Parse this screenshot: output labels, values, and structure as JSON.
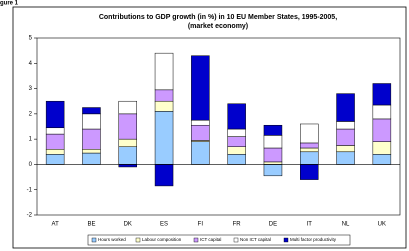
{
  "figure_label": "gure 1",
  "chart_data": {
    "type": "stacked_bar",
    "title": "Contributions to GDP growth (in %) in 10 EU Member States, 1995-2005,",
    "subtitle": "(market economy)",
    "categories": [
      "AT",
      "BE",
      "DK",
      "ES",
      "FI",
      "FR",
      "DE",
      "IT",
      "NL",
      "UK"
    ],
    "series": [
      {
        "name": "Hours worked",
        "color": "#99ccff",
        "values": [
          0.4,
          0.45,
          0.7,
          2.1,
          0.9,
          0.4,
          -0.45,
          0.5,
          0.5,
          0.4
        ]
      },
      {
        "name": "Labour composition",
        "color": "#ffffcc",
        "values": [
          0.2,
          0.15,
          0.3,
          0.4,
          0.05,
          0.3,
          0.1,
          0.15,
          0.25,
          0.5
        ]
      },
      {
        "name": "ICT capital",
        "color": "#cc99ff",
        "values": [
          0.6,
          0.8,
          1.0,
          0.45,
          0.6,
          0.4,
          0.55,
          0.2,
          0.65,
          0.9
        ]
      },
      {
        "name": "Non ICT capital",
        "color": "#ffffff",
        "values": [
          0.25,
          0.6,
          0.5,
          1.45,
          0.2,
          0.3,
          0.5,
          0.75,
          0.3,
          0.55
        ]
      },
      {
        "name": "Multi factor productivity",
        "color": "#0000cc",
        "values": [
          1.05,
          0.25,
          -0.1,
          -0.85,
          2.55,
          1.0,
          0.4,
          -0.6,
          1.1,
          0.85
        ]
      }
    ],
    "ylim": [
      -2,
      5
    ],
    "yticks": [
      -2,
      -1,
      0,
      1,
      2,
      3,
      4,
      5
    ],
    "legend": "bottom"
  }
}
